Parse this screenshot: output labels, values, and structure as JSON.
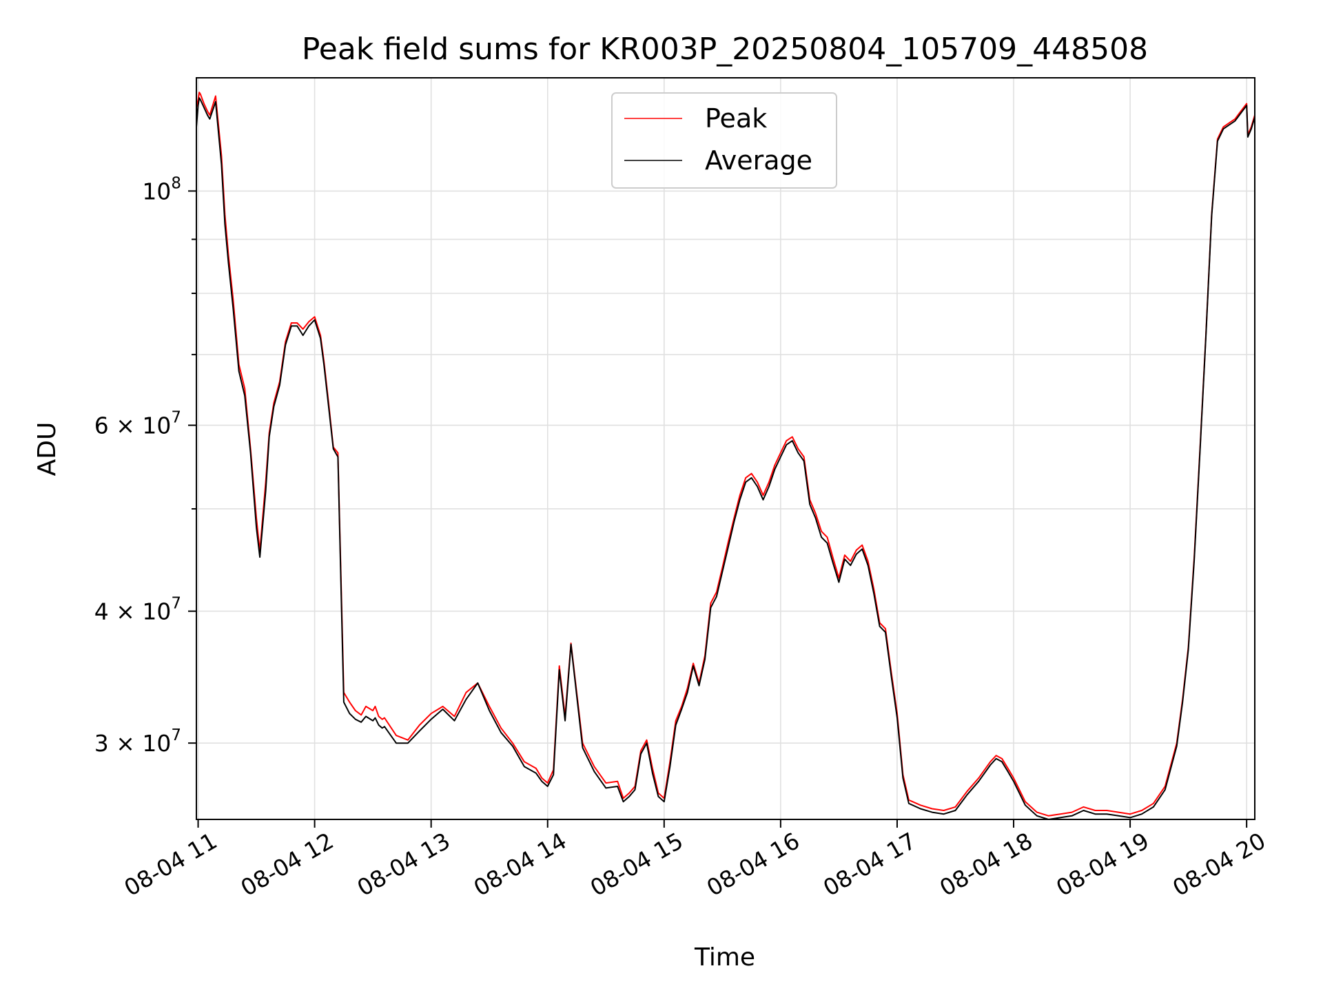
{
  "chart_data": {
    "type": "line",
    "title": "Peak field sums for KR003P_20250804_105709_448508",
    "xlabel": "Time",
    "ylabel": "ADU",
    "x_unit": "hours (2025-08-04)",
    "xlim": [
      10.985,
      20.07
    ],
    "ylim": [
      25400000,
      128000000
    ],
    "yscale": "log",
    "grid": true,
    "legend_position": "top-center",
    "x_ticks": [
      {
        "value": 11,
        "label": "08-04 11"
      },
      {
        "value": 12,
        "label": "08-04 12"
      },
      {
        "value": 13,
        "label": "08-04 13"
      },
      {
        "value": 14,
        "label": "08-04 14"
      },
      {
        "value": 15,
        "label": "08-04 15"
      },
      {
        "value": 16,
        "label": "08-04 16"
      },
      {
        "value": 17,
        "label": "08-04 17"
      },
      {
        "value": 18,
        "label": "08-04 18"
      },
      {
        "value": 19,
        "label": "08-04 19"
      },
      {
        "value": 20,
        "label": "08-04 20"
      }
    ],
    "y_ticks": [
      {
        "value": 30000000,
        "mantissa": "3",
        "exp": "7"
      },
      {
        "value": 40000000,
        "mantissa": "4",
        "exp": "7"
      },
      {
        "value": 60000000,
        "mantissa": "6",
        "exp": "7"
      },
      {
        "value": 100000000,
        "mantissa": "",
        "exp": "8"
      }
    ],
    "y_minor_ticks": [
      50000000,
      70000000,
      80000000,
      90000000
    ],
    "times_symbol": "×",
    "series": [
      {
        "name": "Peak",
        "color": "#ff0000",
        "x": [
          10.985,
          11.0,
          11.01,
          11.02,
          11.05,
          11.08,
          11.1,
          11.15,
          11.2,
          11.23,
          11.26,
          11.3,
          11.35,
          11.4,
          11.45,
          11.5,
          11.53,
          11.58,
          11.61,
          11.65,
          11.7,
          11.75,
          11.8,
          11.85,
          11.9,
          11.95,
          12.0,
          12.05,
          12.08,
          12.12,
          12.16,
          12.2,
          12.25,
          12.3,
          12.35,
          12.4,
          12.44,
          12.48,
          12.5,
          12.52,
          12.55,
          12.58,
          12.6,
          12.7,
          12.8,
          12.9,
          13.0,
          13.1,
          13.2,
          13.3,
          13.4,
          13.5,
          13.6,
          13.7,
          13.8,
          13.9,
          13.95,
          14.0,
          14.05,
          14.1,
          14.15,
          14.2,
          14.3,
          14.4,
          14.5,
          14.6,
          14.65,
          14.7,
          14.75,
          14.8,
          14.85,
          14.9,
          14.95,
          15.0,
          15.05,
          15.1,
          15.15,
          15.2,
          15.25,
          15.3,
          15.35,
          15.4,
          15.45,
          15.5,
          15.55,
          15.6,
          15.65,
          15.7,
          15.75,
          15.8,
          15.85,
          15.9,
          15.95,
          16.0,
          16.05,
          16.1,
          16.15,
          16.2,
          16.25,
          16.3,
          16.35,
          16.4,
          16.45,
          16.5,
          16.55,
          16.6,
          16.65,
          16.7,
          16.75,
          16.8,
          16.85,
          16.9,
          16.95,
          17.0,
          17.05,
          17.1,
          17.2,
          17.3,
          17.4,
          17.5,
          17.6,
          17.7,
          17.8,
          17.85,
          17.9,
          17.95,
          18.0,
          18.1,
          18.2,
          18.3,
          18.4,
          18.5,
          18.6,
          18.7,
          18.8,
          18.9,
          19.0,
          19.1,
          19.2,
          19.3,
          19.4,
          19.45,
          19.5,
          19.55,
          19.6,
          19.65,
          19.7,
          19.75,
          19.8,
          19.85,
          19.9,
          19.95,
          20.0,
          20.01,
          20.04,
          20.07
        ],
        "values": [
          120000000,
          122000000,
          124000000,
          123500000,
          121000000,
          119000000,
          118000000,
          123000000,
          108000000,
          95000000,
          87000000,
          79000000,
          68500000,
          65000000,
          57000000,
          49000000,
          45600000,
          53000000,
          59000000,
          63000000,
          66000000,
          72000000,
          75000000,
          75000000,
          74000000,
          75200000,
          76000000,
          73000000,
          69000000,
          63000000,
          57200000,
          56500000,
          33500000,
          32800000,
          32200000,
          31900000,
          32500000,
          32300000,
          32200000,
          32500000,
          31800000,
          31600000,
          31700000,
          30500000,
          30200000,
          31200000,
          32000000,
          32500000,
          31800000,
          33500000,
          34200000,
          32500000,
          31000000,
          30000000,
          28800000,
          28400000,
          27800000,
          27500000,
          28300000,
          35500000,
          31800000,
          37300000,
          30000000,
          28500000,
          27500000,
          27600000,
          26600000,
          26900000,
          27300000,
          29500000,
          30200000,
          28400000,
          26900000,
          26600000,
          28800000,
          31500000,
          32500000,
          33800000,
          35700000,
          34200000,
          36300000,
          40700000,
          41700000,
          44000000,
          46500000,
          49000000,
          51500000,
          53500000,
          54000000,
          53000000,
          51500000,
          53000000,
          55000000,
          56500000,
          58000000,
          58500000,
          57000000,
          56000000,
          51000000,
          49500000,
          47600000,
          47000000,
          44900000,
          43000000,
          45200000,
          44600000,
          45700000,
          46200000,
          44600000,
          42000000,
          39000000,
          38500000,
          35000000,
          32000000,
          28000000,
          26500000,
          26200000,
          26000000,
          25900000,
          26100000,
          27000000,
          27800000,
          28800000,
          29200000,
          29000000,
          28400000,
          27800000,
          26400000,
          25800000,
          25600000,
          25700000,
          25800000,
          26100000,
          25900000,
          25900000,
          25800000,
          25700000,
          25900000,
          26300000,
          27300000,
          30000000,
          33000000,
          37000000,
          45000000,
          57000000,
          73000000,
          95000000,
          112000000,
          115000000,
          116000000,
          117000000,
          119000000,
          121000000,
          113000000,
          115000000,
          118000000
        ]
      },
      {
        "name": "Average",
        "color": "#000000",
        "x": [
          10.985,
          11.0,
          11.01,
          11.02,
          11.05,
          11.08,
          11.1,
          11.15,
          11.2,
          11.23,
          11.26,
          11.3,
          11.35,
          11.4,
          11.45,
          11.5,
          11.53,
          11.58,
          11.61,
          11.65,
          11.7,
          11.75,
          11.8,
          11.85,
          11.9,
          11.95,
          12.0,
          12.05,
          12.08,
          12.12,
          12.16,
          12.2,
          12.25,
          12.3,
          12.35,
          12.4,
          12.44,
          12.48,
          12.5,
          12.52,
          12.55,
          12.58,
          12.6,
          12.7,
          12.8,
          12.9,
          13.0,
          13.1,
          13.2,
          13.3,
          13.4,
          13.5,
          13.6,
          13.7,
          13.8,
          13.9,
          13.95,
          14.0,
          14.05,
          14.1,
          14.15,
          14.2,
          14.3,
          14.4,
          14.5,
          14.6,
          14.65,
          14.7,
          14.75,
          14.8,
          14.85,
          14.9,
          14.95,
          15.0,
          15.05,
          15.1,
          15.15,
          15.2,
          15.25,
          15.3,
          15.35,
          15.4,
          15.45,
          15.5,
          15.55,
          15.6,
          15.65,
          15.7,
          15.75,
          15.8,
          15.85,
          15.9,
          15.95,
          16.0,
          16.05,
          16.1,
          16.15,
          16.2,
          16.25,
          16.3,
          16.35,
          16.4,
          16.45,
          16.5,
          16.55,
          16.6,
          16.65,
          16.7,
          16.75,
          16.8,
          16.85,
          16.9,
          16.95,
          17.0,
          17.05,
          17.1,
          17.2,
          17.3,
          17.4,
          17.5,
          17.6,
          17.7,
          17.8,
          17.85,
          17.9,
          17.95,
          18.0,
          18.1,
          18.2,
          18.3,
          18.4,
          18.5,
          18.6,
          18.7,
          18.8,
          18.9,
          19.0,
          19.1,
          19.2,
          19.3,
          19.4,
          19.45,
          19.5,
          19.55,
          19.6,
          19.65,
          19.7,
          19.75,
          19.8,
          19.85,
          19.9,
          19.95,
          20.0,
          20.01,
          20.04,
          20.07
        ],
        "values": [
          115000000,
          120500000,
          122500000,
          122000000,
          120000000,
          118000000,
          117000000,
          121500000,
          106000000,
          93000000,
          85500000,
          77500000,
          67500000,
          64000000,
          56500000,
          48000000,
          45000000,
          52000000,
          58500000,
          62500000,
          65500000,
          71500000,
          74500000,
          74500000,
          73000000,
          74500000,
          75500000,
          72500000,
          68500000,
          62500000,
          57000000,
          56000000,
          32800000,
          32000000,
          31600000,
          31400000,
          31800000,
          31600000,
          31500000,
          31700000,
          31200000,
          31000000,
          31100000,
          30000000,
          30000000,
          30800000,
          31600000,
          32300000,
          31500000,
          33000000,
          34200000,
          32200000,
          30700000,
          29800000,
          28500000,
          28100000,
          27600000,
          27300000,
          28000000,
          35200000,
          31500000,
          37200000,
          29700000,
          28200000,
          27200000,
          27300000,
          26400000,
          26700000,
          27100000,
          29300000,
          30000000,
          28100000,
          26700000,
          26400000,
          28500000,
          31200000,
          32300000,
          33500000,
          35500000,
          34000000,
          36000000,
          40300000,
          41300000,
          43600000,
          46000000,
          48600000,
          51000000,
          53000000,
          53500000,
          52500000,
          51000000,
          52500000,
          54500000,
          56000000,
          57500000,
          58000000,
          56500000,
          55500000,
          50500000,
          49000000,
          47000000,
          46400000,
          44400000,
          42600000,
          44800000,
          44200000,
          45300000,
          45800000,
          44200000,
          41600000,
          38700000,
          38200000,
          34700000,
          31700000,
          27800000,
          26300000,
          26000000,
          25800000,
          25700000,
          25900000,
          26800000,
          27600000,
          28600000,
          29000000,
          28800000,
          28200000,
          27600000,
          26200000,
          25600000,
          25400000,
          25500000,
          25600000,
          25900000,
          25700000,
          25700000,
          25600000,
          25500000,
          25700000,
          26100000,
          27100000,
          29800000,
          32800000,
          36800000,
          44700000,
          56700000,
          72700000,
          94700000,
          111500000,
          114500000,
          115500000,
          116500000,
          118500000,
          120500000,
          112500000,
          114500000,
          117500000
        ]
      }
    ]
  }
}
